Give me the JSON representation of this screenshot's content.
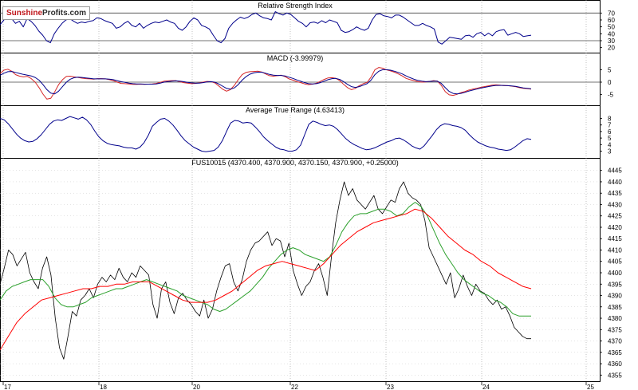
{
  "logo": {
    "part1": "Sunshine",
    "part2": "Profits",
    "part3": ".com"
  },
  "chart_data": [
    {
      "type": "line",
      "title": "Relative Strength Index",
      "y_ticks": [
        "70",
        "60",
        "50",
        "40",
        "30",
        "20"
      ],
      "reference_lines": [
        70,
        30
      ],
      "ylim": [
        15,
        75
      ],
      "series": [
        {
          "color": "#00008b",
          "values": [
            53,
            60,
            65,
            62,
            55,
            58,
            50,
            62,
            58,
            52,
            44,
            38,
            30,
            27,
            40,
            48,
            55,
            60,
            62,
            58,
            55,
            57,
            56,
            58,
            59,
            63,
            62,
            59,
            57,
            55,
            48,
            50,
            55,
            58,
            52,
            50,
            55,
            48,
            52,
            55,
            57,
            56,
            58,
            60,
            57,
            55,
            48,
            45,
            50,
            58,
            63,
            60,
            52,
            50,
            47,
            38,
            30,
            27,
            33,
            48,
            55,
            60,
            64,
            62,
            64,
            68,
            70,
            66,
            63,
            62,
            60,
            72,
            69,
            67,
            70,
            68,
            63,
            58,
            55,
            50,
            56,
            57,
            55,
            59,
            56,
            60,
            58,
            56,
            45,
            42,
            43,
            46,
            50,
            47,
            45,
            48,
            60,
            68,
            69,
            66,
            65,
            63,
            67,
            67,
            64,
            60,
            56,
            52,
            52,
            55,
            52,
            50,
            47,
            28,
            25,
            30,
            35,
            34,
            33,
            32,
            37,
            38,
            35,
            40,
            42,
            37,
            41,
            37,
            43,
            45,
            46,
            38,
            40,
            42,
            40,
            36,
            37,
            38
          ]
        }
      ]
    },
    {
      "type": "line",
      "title": "MACD (-3.99979)",
      "y_ticks": [
        "5",
        "0",
        "-5"
      ],
      "reference_lines": [
        0
      ],
      "ylim": [
        -8,
        8
      ],
      "series": [
        {
          "name": "",
          "color": "#d62728",
          "values": [
            3.5,
            4.8,
            5.2,
            4.4,
            3.0,
            2.4,
            2.1,
            2.3,
            1.4,
            0.0,
            -2.2,
            -4.8,
            -6.8,
            -6.5,
            -3.9,
            -1.0,
            1.0,
            2.3,
            2.4,
            2.1,
            1.9,
            1.6,
            1.4,
            1.3,
            1.2,
            1.4,
            1.4,
            1.3,
            1.0,
            0.6,
            0.0,
            -0.5,
            -0.6,
            -0.7,
            -0.9,
            -0.9,
            -0.8,
            -0.9,
            -0.8,
            -0.7,
            -0.5,
            -0.1,
            0.4,
            0.5,
            0.6,
            0.6,
            0.2,
            -0.2,
            -0.4,
            -0.6,
            -0.5,
            -0.3,
            0.0,
            0.3,
            0.2,
            -0.3,
            -1.5,
            -2.8,
            -3.6,
            -3.0,
            -1.3,
            1.0,
            3.0,
            3.9,
            4.2,
            4.3,
            4.4,
            4.1,
            3.3,
            2.6,
            2.4,
            2.6,
            2.8,
            2.2,
            1.3,
            0.8,
            0.2,
            -0.2,
            -0.7,
            -1.0,
            -0.8,
            -0.4,
            0.3,
            1.1,
            1.7,
            1.8,
            1.5,
            0.6,
            -0.9,
            -2.2,
            -3.0,
            -2.5,
            -1.4,
            -0.6,
            -0.1,
            2.0,
            5.0,
            5.9,
            5.6,
            4.9,
            4.5,
            4.0,
            3.3,
            2.5,
            1.5,
            1.0,
            0.6,
            0.2,
            0.0,
            0.1,
            0.3,
            0.6,
            0.4,
            -1.3,
            -3.8,
            -5.1,
            -5.3,
            -4.9,
            -4.2,
            -3.8,
            -3.2,
            -2.8,
            -2.5,
            -2.1,
            -1.8,
            -1.5,
            -1.2,
            -1.1,
            -1.2,
            -1.4,
            -1.4,
            -1.6,
            -1.8,
            -2.2,
            -2.5,
            -2.6,
            -2.8
          ]
        },
        {
          "name": "",
          "color": "#00008b",
          "values": [
            2.8,
            3.6,
            4.2,
            4.3,
            3.9,
            3.5,
            3.1,
            2.8,
            2.5,
            1.9,
            0.8,
            -1.0,
            -3.0,
            -4.4,
            -4.7,
            -3.6,
            -1.8,
            0.0,
            1.2,
            1.8,
            2.0,
            1.9,
            1.7,
            1.5,
            1.3,
            1.3,
            1.3,
            1.3,
            1.2,
            1.0,
            0.6,
            0.2,
            -0.1,
            -0.4,
            -0.6,
            -0.7,
            -0.7,
            -0.8,
            -0.8,
            -0.8,
            -0.7,
            -0.4,
            0.0,
            0.2,
            0.4,
            0.5,
            0.4,
            0.2,
            -0.1,
            -0.3,
            -0.4,
            -0.4,
            -0.2,
            0.1,
            0.2,
            0.0,
            -0.7,
            -1.6,
            -2.5,
            -2.8,
            -2.3,
            -1.0,
            0.8,
            2.2,
            3.2,
            3.7,
            4.0,
            4.0,
            3.6,
            3.1,
            2.8,
            2.7,
            2.7,
            2.5,
            2.0,
            1.5,
            0.9,
            0.4,
            -0.2,
            -0.6,
            -0.7,
            -0.6,
            -0.2,
            0.4,
            1.0,
            1.4,
            1.5,
            1.1,
            0.2,
            -0.9,
            -1.8,
            -2.1,
            -1.8,
            -1.2,
            -0.6,
            0.8,
            3.0,
            4.4,
            5.0,
            5.0,
            4.8,
            4.4,
            3.9,
            3.3,
            2.5,
            1.8,
            1.2,
            0.7,
            0.4,
            0.2,
            0.3,
            0.4,
            0.4,
            -0.5,
            -2.2,
            -3.7,
            -4.5,
            -4.7,
            -4.5,
            -4.1,
            -3.6,
            -3.2,
            -2.8,
            -2.4,
            -2.1,
            -1.8,
            -1.5,
            -1.3,
            -1.3,
            -1.3,
            -1.4,
            -1.5,
            -1.7,
            -2.0,
            -2.3,
            -2.5,
            -2.7
          ]
        }
      ]
    },
    {
      "type": "line",
      "title": "Average True Range (4.63413)",
      "y_ticks": [
        "8",
        "7",
        "6",
        "5",
        "4",
        "3"
      ],
      "ylim": [
        2.2,
        8.8
      ],
      "series": [
        {
          "color": "#00008b",
          "values": [
            8.0,
            7.8,
            7.2,
            6.4,
            5.6,
            5.0,
            4.6,
            4.4,
            4.5,
            4.9,
            5.5,
            6.3,
            7.1,
            7.6,
            7.8,
            7.7,
            8.0,
            8.3,
            8.1,
            7.9,
            8.2,
            7.8,
            7.1,
            6.1,
            5.2,
            4.6,
            4.2,
            4.0,
            3.9,
            3.8,
            3.6,
            3.5,
            3.5,
            3.3,
            3.6,
            4.3,
            5.4,
            6.8,
            7.4,
            7.9,
            8.0,
            7.6,
            7.0,
            6.2,
            5.3,
            4.6,
            4.1,
            3.6,
            3.3,
            3.0,
            2.9,
            3.0,
            3.1,
            3.6,
            4.6,
            6.0,
            7.3,
            7.7,
            7.6,
            7.3,
            7.4,
            7.3,
            6.7,
            6.0,
            5.2,
            4.6,
            4.1,
            3.6,
            3.3,
            3.2,
            3.0,
            3.0,
            3.2,
            3.9,
            5.5,
            7.1,
            7.6,
            7.4,
            7.1,
            6.9,
            7.0,
            6.8,
            6.3,
            5.6,
            4.9,
            4.4,
            4.0,
            3.7,
            3.4,
            3.2,
            3.3,
            3.5,
            3.8,
            4.1,
            4.4,
            4.6,
            4.9,
            5.0,
            4.7,
            4.3,
            3.8,
            3.5,
            3.3,
            3.8,
            4.6,
            5.4,
            6.3,
            6.9,
            7.2,
            7.1,
            6.9,
            6.8,
            6.6,
            6.2,
            5.5,
            4.9,
            4.4,
            4.1,
            3.8,
            3.6,
            3.5,
            3.3,
            3.2,
            3.1,
            3.2,
            3.6,
            4.1,
            4.6,
            4.9,
            4.8
          ]
        }
      ]
    },
    {
      "type": "line",
      "title": "FUS10015 (4370.400, 4370.900, 4370.150, 4370.900, +0.25000)",
      "y_ticks": [
        "4445",
        "4440",
        "4435",
        "4430",
        "4425",
        "4420",
        "4415",
        "4410",
        "4405",
        "4400",
        "4395",
        "4390",
        "4385",
        "4380",
        "4375",
        "4370",
        "4365",
        "4360",
        "4355"
      ],
      "ylim": [
        4353,
        4447
      ],
      "x_ticks": [
        "17",
        "18",
        "20",
        "22",
        "23",
        "24",
        "25"
      ],
      "series": [
        {
          "name": "price",
          "color": "#000000",
          "values": [
            4395,
            4402,
            4410,
            4408,
            4403,
            4406,
            4409,
            4400,
            4396,
            4393,
            4402,
            4407,
            4399,
            4380,
            4367,
            4362,
            4372,
            4383,
            4381,
            4388,
            4390,
            4393,
            4389,
            4395,
            4398,
            4396,
            4399,
            4397,
            4402,
            4398,
            4396,
            4400,
            4398,
            4403,
            4401,
            4399,
            4386,
            4380,
            4393,
            4396,
            4387,
            4382,
            4389,
            4391,
            4388,
            4386,
            4383,
            4381,
            4388,
            4380,
            4384,
            4392,
            4398,
            4403,
            4404,
            4396,
            4392,
            4397,
            4405,
            4410,
            4413,
            4414,
            4416,
            4418,
            4412,
            4415,
            4414,
            4407,
            4413,
            4401,
            4395,
            4390,
            4394,
            4396,
            4401,
            4404,
            4398,
            4390,
            4407,
            4422,
            4432,
            4440,
            4434,
            4437,
            4432,
            4430,
            4428,
            4431,
            4434,
            4428,
            4426,
            4429,
            4432,
            4431,
            4437,
            4440,
            4435,
            4433,
            4432,
            4430,
            4423,
            4411,
            4407,
            4403,
            4399,
            4395,
            4400,
            4389,
            4393,
            4399,
            4394,
            4390,
            4395,
            4392,
            4391,
            4388,
            4386,
            4388,
            4384,
            4385,
            4381,
            4376,
            4374,
            4372,
            4371,
            4371
          ]
        },
        {
          "name": "sma-fast",
          "color": "#2ca02c",
          "values": [
            4388,
            4392,
            4394,
            4395,
            4396,
            4397,
            4397,
            4397,
            4394,
            4389,
            4386,
            4385,
            4385,
            4386,
            4387,
            4389,
            4390,
            4391,
            4392,
            4393,
            4393,
            4394,
            4395,
            4396,
            4397,
            4396,
            4395,
            4394,
            4393,
            4392,
            4390,
            4389,
            4388,
            4387,
            4386,
            4384,
            4383,
            4384,
            4386,
            4388,
            4390,
            4392,
            4395,
            4398,
            4402,
            4405,
            4408,
            4410,
            4411,
            4410,
            4408,
            4407,
            4406,
            4405,
            4407,
            4412,
            4418,
            4422,
            4425,
            4426,
            4426,
            4427,
            4428,
            4428,
            4427,
            4425,
            4426,
            4429,
            4431,
            4429,
            4425,
            4419,
            4413,
            4408,
            4404,
            4400,
            4397,
            4395,
            4393,
            4391,
            4390,
            4388,
            4387,
            4385,
            4382,
            4381,
            4381,
            4381
          ]
        },
        {
          "name": "sma-slow",
          "color": "#ff0000",
          "values": [
            4366,
            4372,
            4378,
            4382,
            4385,
            4388,
            4389,
            4390,
            4391,
            4392,
            4393,
            4393,
            4394,
            4394,
            4395,
            4395,
            4396,
            4396,
            4396,
            4394,
            4392,
            4390,
            4388,
            4387,
            4387,
            4387,
            4388,
            4390,
            4392,
            4395,
            4398,
            4401,
            4403,
            4404,
            4405,
            4404,
            4403,
            4402,
            4401,
            4404,
            4408,
            4412,
            4415,
            4418,
            4420,
            4422,
            4423,
            4424,
            4425,
            4426,
            4428,
            4427,
            4424,
            4420,
            4416,
            4413,
            4410,
            4408,
            4405,
            4403,
            4400,
            4398,
            4396,
            4394,
            4393
          ]
        }
      ]
    }
  ]
}
